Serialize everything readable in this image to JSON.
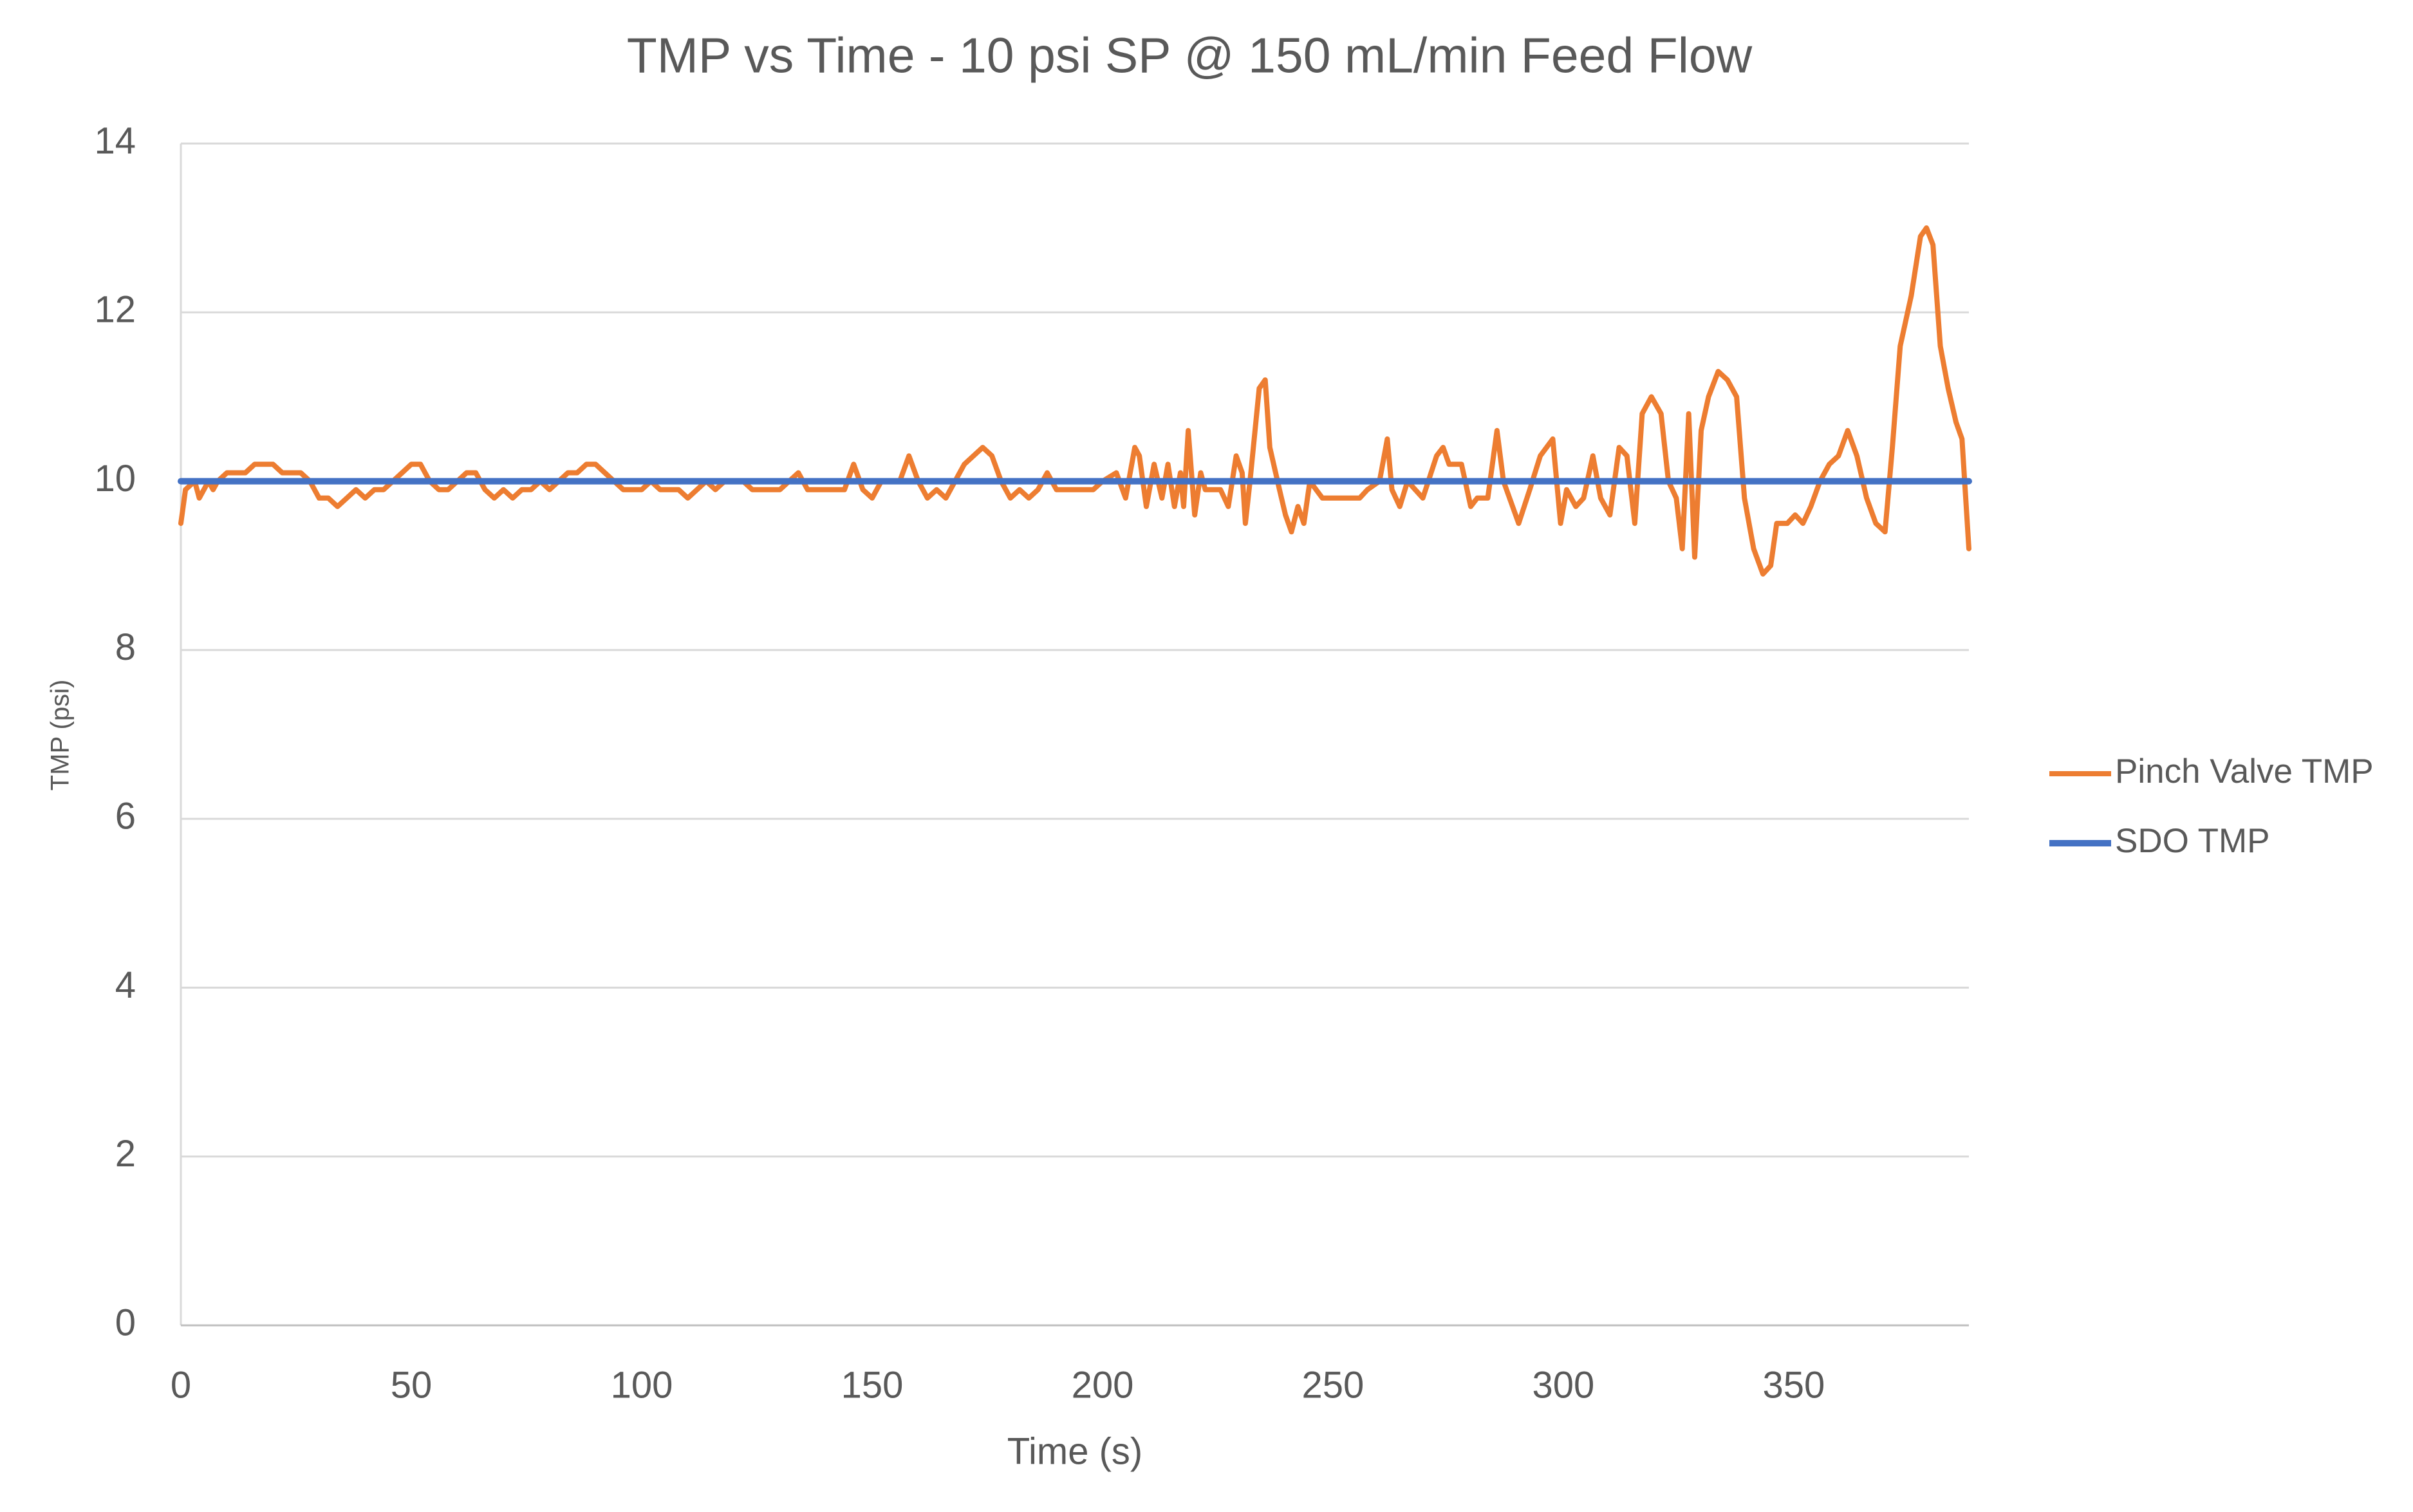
{
  "chart_data": {
    "type": "line",
    "title": "TMP vs Time - 10 psi SP @ 150 mL/min Feed Flow",
    "x_label": "Time (s)",
    "y_label": "TMP (psi)",
    "xlim": [
      0,
      388
    ],
    "ylim": [
      0,
      14
    ],
    "xticks": [
      0,
      50,
      100,
      150,
      200,
      250,
      300,
      350
    ],
    "yticks": [
      0,
      2,
      4,
      6,
      8,
      10,
      12,
      14
    ],
    "grid": true,
    "legend": "right",
    "series": [
      {
        "name": "Pinch Valve TMP",
        "color": "#ED7D31",
        "x": [
          0,
          1,
          3,
          4,
          5,
          6,
          7,
          8,
          10,
          14,
          16,
          20,
          22,
          26,
          28,
          30,
          32,
          34,
          36,
          38,
          40,
          42,
          44,
          46,
          48,
          50,
          52,
          54,
          56,
          58,
          60,
          62,
          64,
          66,
          68,
          70,
          72,
          74,
          76,
          78,
          80,
          82,
          84,
          86,
          88,
          90,
          92,
          94,
          96,
          100,
          102,
          104,
          108,
          110,
          112,
          114,
          116,
          118,
          122,
          124,
          130,
          132,
          134,
          136,
          144,
          146,
          148,
          150,
          152,
          156,
          158,
          160,
          162,
          164,
          166,
          168,
          170,
          174,
          176,
          178,
          180,
          182,
          184,
          186,
          188,
          190,
          194,
          198,
          200,
          203,
          205,
          207,
          208,
          209.5,
          211.2,
          212.9,
          214.2,
          215.6,
          216.9,
          217.6,
          218.6,
          220,
          221.3,
          222.3,
          225.6,
          227.3,
          229,
          230.3,
          231,
          232,
          234,
          235.3,
          236.3,
          238.4,
          239.7,
          241,
          242.4,
          243.7,
          245,
          247.7,
          255.8,
          257.5,
          260.1,
          261.8,
          262.8,
          264.5,
          266.2,
          269.5,
          272.5,
          273.9,
          275.2,
          277.9,
          279.9,
          281.3,
          283.6,
          285.6,
          287,
          290.3,
          292.7,
          295,
          297.7,
          299.4,
          300.7,
          302.7,
          304.4,
          306.4,
          308.1,
          310.1,
          312.1,
          313.8,
          315.5,
          317.1,
          319.1,
          321.2,
          322.8,
          324.5,
          325.8,
          327.2,
          328.5,
          329.9,
          331.5,
          333.6,
          335.6,
          337.6,
          339.3,
          341.3,
          343.3,
          345,
          346.3,
          348.6,
          350.3,
          352,
          353.7,
          355.7,
          357.7,
          359.7,
          361.7,
          363.7,
          365.8,
          367.8,
          369.8,
          371.4,
          373.1,
          375.5,
          377.5,
          378.8,
          380.2,
          381.8,
          383.5,
          385.2,
          386.5,
          388
        ],
        "values": [
          9.5,
          9.9,
          10.0,
          9.8,
          9.9,
          10.0,
          9.9,
          10.0,
          10.1,
          10.1,
          10.2,
          10.2,
          10.1,
          10.1,
          10.0,
          9.8,
          9.8,
          9.7,
          9.8,
          9.9,
          9.8,
          9.9,
          9.9,
          10.0,
          10.1,
          10.2,
          10.2,
          10.0,
          9.9,
          9.9,
          10.0,
          10.1,
          10.1,
          9.9,
          9.8,
          9.9,
          9.8,
          9.9,
          9.9,
          10.0,
          9.9,
          10.0,
          10.1,
          10.1,
          10.2,
          10.2,
          10.1,
          10.0,
          9.9,
          9.9,
          10.0,
          9.9,
          9.9,
          9.8,
          9.9,
          10.0,
          9.9,
          10.0,
          10.0,
          9.9,
          9.9,
          10.0,
          10.1,
          9.9,
          9.9,
          10.2,
          9.9,
          9.8,
          10.0,
          10.0,
          10.3,
          10.0,
          9.8,
          9.9,
          9.8,
          10.0,
          10.2,
          10.4,
          10.3,
          10.0,
          9.8,
          9.9,
          9.8,
          9.9,
          10.1,
          9.9,
          9.9,
          9.9,
          10.0,
          10.1,
          9.8,
          10.4,
          10.3,
          9.7,
          10.2,
          9.8,
          10.2,
          9.7,
          10.1,
          9.7,
          10.6,
          9.6,
          10.1,
          9.9,
          9.9,
          9.7,
          10.3,
          10.1,
          9.5,
          10.0,
          11.1,
          11.2,
          10.4,
          9.9,
          9.6,
          9.4,
          9.7,
          9.5,
          10.0,
          9.8,
          9.8,
          9.9,
          10.0,
          10.5,
          9.9,
          9.7,
          10.0,
          9.8,
          10.3,
          10.4,
          10.2,
          10.2,
          9.7,
          9.8,
          9.8,
          10.6,
          10.0,
          9.5,
          9.9,
          10.3,
          10.5,
          9.5,
          9.9,
          9.7,
          9.8,
          10.3,
          9.8,
          9.6,
          10.4,
          10.3,
          9.5,
          10.8,
          11.0,
          10.8,
          10.0,
          9.8,
          9.2,
          10.8,
          9.1,
          10.6,
          11.0,
          11.3,
          11.2,
          11.0,
          9.8,
          9.2,
          8.9,
          9.0,
          9.5,
          9.5,
          9.6,
          9.5,
          9.7,
          10.0,
          10.2,
          10.3,
          10.6,
          10.3,
          9.8,
          9.5,
          9.4,
          10.4,
          11.6,
          12.2,
          12.9,
          13.0,
          12.8,
          11.6,
          11.1,
          10.7,
          10.5,
          9.2
        ]
      },
      {
        "name": "SDO TMP",
        "color": "#4472C4",
        "x": [
          0,
          388
        ],
        "values": [
          10,
          10
        ]
      }
    ]
  }
}
